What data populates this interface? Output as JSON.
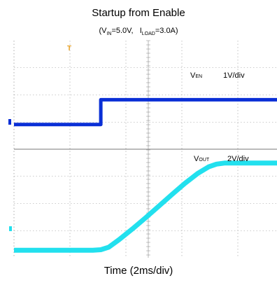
{
  "title": "Startup from Enable",
  "subtitle": {
    "vin_prefix": "(V",
    "vin_sub": "IN",
    "vin_value": "=5.0V,",
    "iload_prefix": "I",
    "iload_sub": "LOAD",
    "iload_value": "=3.0A)"
  },
  "xlabel": "Time (2ms/div)",
  "colors": {
    "ven": "#0a2fd6",
    "vout": "#22e0ee",
    "grid": "#9a9a9a",
    "trigger": "#e8a020"
  },
  "chart_data": [
    {
      "type": "line",
      "panel": "top",
      "series": [
        {
          "name_prefix": "V",
          "name_sub": "EN",
          "scale": "1V/div",
          "x": [
            0,
            3.3,
            3.3,
            10
          ],
          "y": [
            0,
            0,
            1.18,
            1.18
          ]
        }
      ],
      "xlim": [
        0,
        10
      ],
      "ylim": [
        -1.18,
        4.0
      ],
      "divisions_x": 10,
      "divisions_y": 4,
      "grid": true
    },
    {
      "type": "line",
      "panel": "bottom",
      "series": [
        {
          "name_prefix": "V",
          "name_sub": "OUT",
          "scale": "2V/div",
          "x": [
            0,
            3.0,
            3.3,
            3.6,
            4.0,
            4.5,
            5.0,
            5.5,
            6.0,
            6.5,
            7.0,
            7.4,
            7.7,
            8.0,
            10
          ],
          "y": [
            0,
            0,
            0.02,
            0.12,
            0.42,
            0.84,
            1.28,
            1.74,
            2.2,
            2.65,
            3.05,
            3.3,
            3.41,
            3.45,
            3.45
          ]
        }
      ],
      "xlim": [
        0,
        10
      ],
      "ylim": [
        -0.3,
        4.0
      ],
      "divisions_x": 10,
      "divisions_y": 4,
      "grid": true
    }
  ]
}
